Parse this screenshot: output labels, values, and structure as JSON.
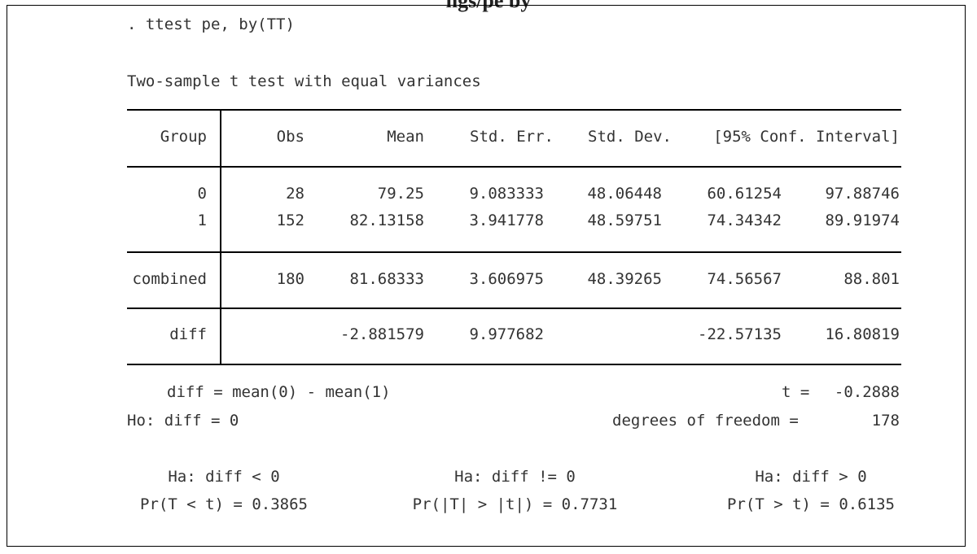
{
  "page_header_partial": "ngs/pe by",
  "command": ". ttest pe, by(TT)",
  "test_title": "Two-sample t test with equal variances",
  "table": {
    "headers": [
      "Group",
      "Obs",
      "Mean",
      "Std. Err.",
      "Std. Dev.",
      "[95% Conf. Interval]"
    ],
    "rows": [
      [
        "0",
        "28",
        "79.25",
        "9.083333",
        "48.06448",
        "60.61254",
        "97.88746"
      ],
      [
        "1",
        "152",
        "82.13158",
        "3.941778",
        "48.59751",
        "74.34342",
        "89.91974"
      ]
    ],
    "combined": [
      "combined",
      "180",
      "81.68333",
      "3.606975",
      "48.39265",
      "74.56567",
      "88.801"
    ],
    "diff": [
      "diff",
      "",
      "-2.881579",
      "9.977682",
      "",
      "-22.57135",
      "16.80819"
    ]
  },
  "summary": {
    "diff_def": "diff = mean(0) - mean(1)",
    "t_label": "t =",
    "t_value": "-0.2888",
    "ho": "Ho: diff = 0",
    "df_label": "degrees of freedom =",
    "df_value": "178"
  },
  "hypotheses": [
    {
      "ha": "Ha: diff < 0",
      "pr": "Pr(T < t) = 0.3865"
    },
    {
      "ha": "Ha: diff != 0",
      "pr": "Pr(|T| > |t|) = 0.7731"
    },
    {
      "ha": "Ha: diff > 0",
      "pr": "Pr(T > t) = 0.6135"
    }
  ]
}
